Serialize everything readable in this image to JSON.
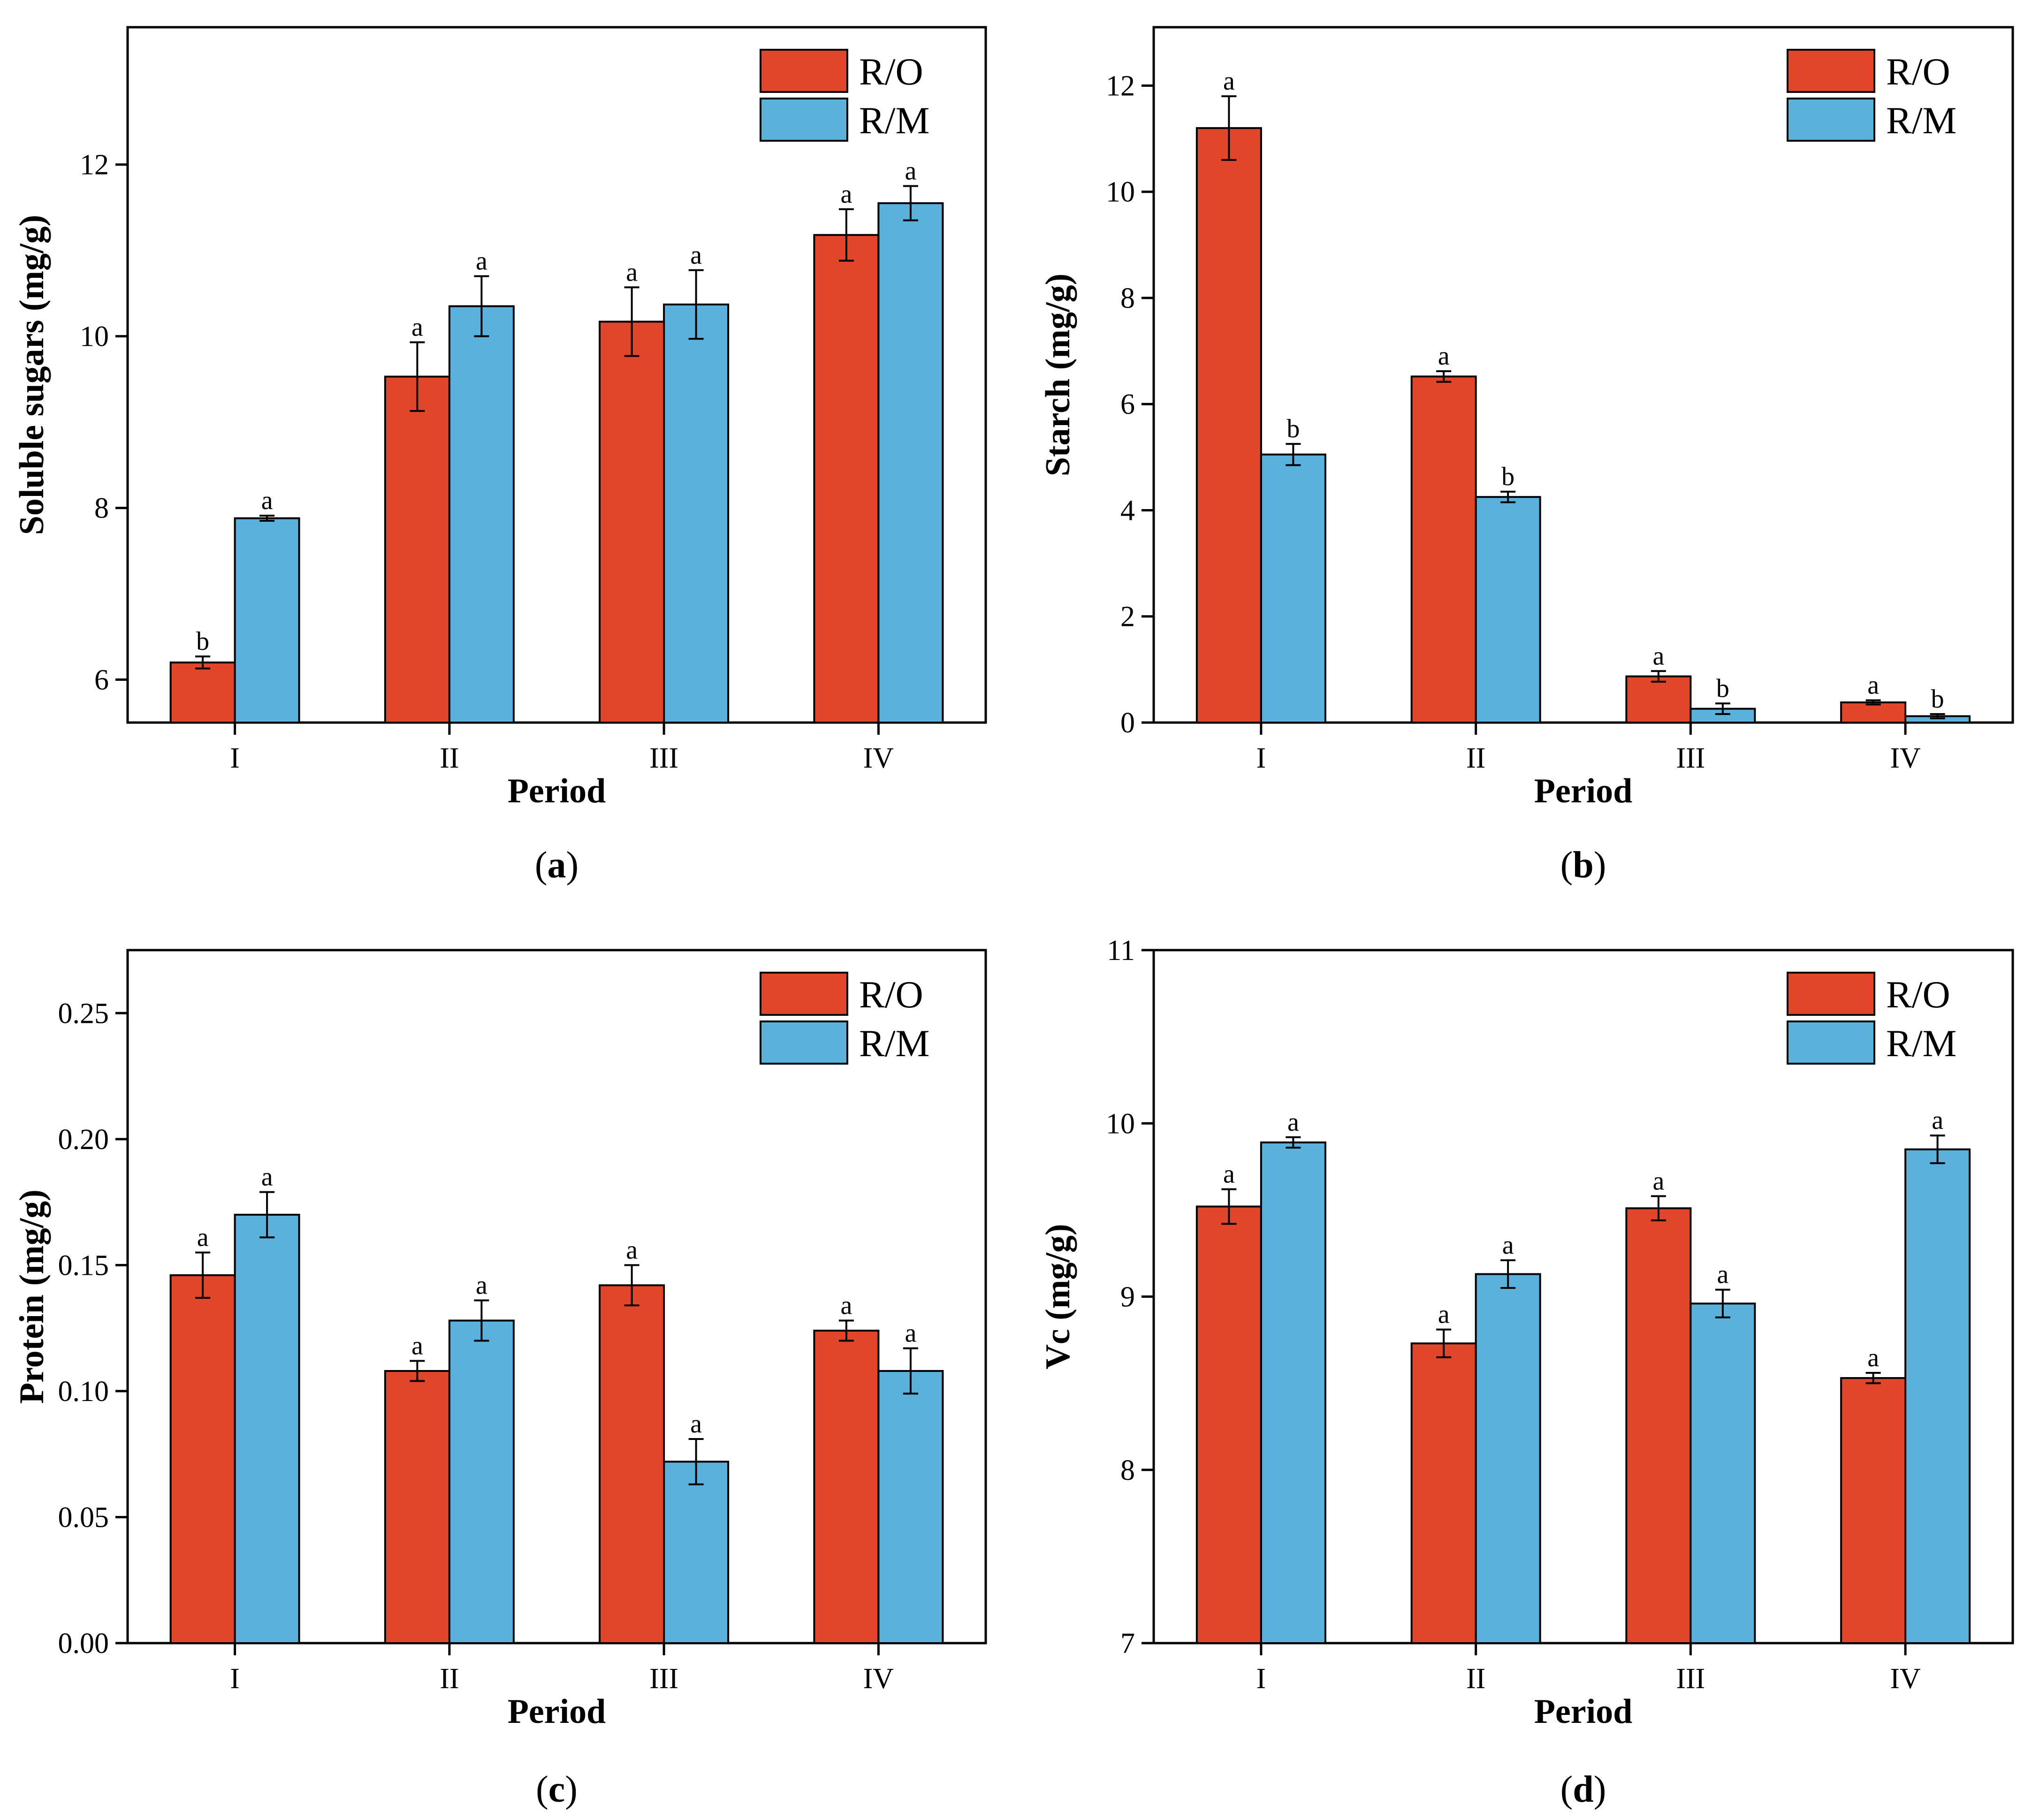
{
  "colors": {
    "ro": "#e2462a",
    "rm": "#5ab1db",
    "axis": "#000000"
  },
  "chart_data": [
    {
      "type": "bar",
      "panel": "a",
      "title": "",
      "xlabel": "Period",
      "ylabel": "Soluble sugars (mg/g)",
      "categories": [
        "I",
        "II",
        "III",
        "IV"
      ],
      "ylim": [
        5.5,
        13.6
      ],
      "yticks": [
        6,
        8,
        10,
        12
      ],
      "ytick_labels": [
        "6",
        "8",
        "10",
        "12"
      ],
      "legend": "top-right",
      "series": [
        {
          "name": "R/O",
          "values": [
            6.2,
            9.53,
            10.17,
            11.18
          ],
          "errors": [
            0.07,
            0.4,
            0.4,
            0.3
          ],
          "letters": [
            "b",
            "a",
            "a",
            "a"
          ]
        },
        {
          "name": "R/M",
          "values": [
            7.88,
            10.35,
            10.37,
            11.55
          ],
          "errors": [
            0.03,
            0.35,
            0.4,
            0.2
          ],
          "letters": [
            "a",
            "a",
            "a",
            "a"
          ]
        }
      ]
    },
    {
      "type": "bar",
      "panel": "b",
      "title": "",
      "xlabel": "Period",
      "ylabel": "Starch (mg/g)",
      "categories": [
        "I",
        "II",
        "III",
        "IV"
      ],
      "ylim": [
        0,
        13.1
      ],
      "yticks": [
        0,
        2,
        4,
        6,
        8,
        10,
        12
      ],
      "ytick_labels": [
        "0",
        "2",
        "4",
        "6",
        "8",
        "10",
        "12"
      ],
      "legend": "top-right",
      "series": [
        {
          "name": "R/O",
          "values": [
            11.2,
            6.52,
            0.87,
            0.38
          ],
          "errors": [
            0.6,
            0.1,
            0.1,
            0.04
          ],
          "letters": [
            "a",
            "a",
            "a",
            "a"
          ]
        },
        {
          "name": "R/M",
          "values": [
            5.05,
            4.25,
            0.26,
            0.12
          ],
          "errors": [
            0.2,
            0.1,
            0.1,
            0.04
          ],
          "letters": [
            "b",
            "b",
            "b",
            "b"
          ]
        }
      ]
    },
    {
      "type": "bar",
      "panel": "c",
      "title": "",
      "xlabel": "Period",
      "ylabel": "Protein (mg/g)",
      "categories": [
        "I",
        "II",
        "III",
        "IV"
      ],
      "ylim": [
        0,
        0.275
      ],
      "yticks": [
        0,
        0.05,
        0.1,
        0.15,
        0.2,
        0.25
      ],
      "ytick_labels": [
        "0.00",
        "0.05",
        "0.10",
        "0.15",
        "0.20",
        "0.25"
      ],
      "legend": "top-right",
      "series": [
        {
          "name": "R/O",
          "values": [
            0.146,
            0.108,
            0.142,
            0.124
          ],
          "errors": [
            0.009,
            0.004,
            0.008,
            0.004
          ],
          "letters": [
            "a",
            "a",
            "a",
            "a"
          ]
        },
        {
          "name": "R/M",
          "values": [
            0.17,
            0.128,
            0.072,
            0.108
          ],
          "errors": [
            0.009,
            0.008,
            0.009,
            0.009
          ],
          "letters": [
            "a",
            "a",
            "a",
            "a"
          ]
        }
      ]
    },
    {
      "type": "bar",
      "panel": "d",
      "title": "",
      "xlabel": "Period",
      "ylabel": "Vc (mg/g)",
      "categories": [
        "I",
        "II",
        "III",
        "IV"
      ],
      "ylim": [
        7,
        11
      ],
      "yticks": [
        7,
        8,
        9,
        10,
        11
      ],
      "ytick_labels": [
        "7",
        "8",
        "9",
        "10",
        "11"
      ],
      "legend": "top-right",
      "series": [
        {
          "name": "R/O",
          "values": [
            9.52,
            8.73,
            9.51,
            8.53
          ],
          "errors": [
            0.1,
            0.08,
            0.07,
            0.03
          ],
          "letters": [
            "a",
            "a",
            "a",
            "a"
          ]
        },
        {
          "name": "R/M",
          "values": [
            9.89,
            9.13,
            8.96,
            9.85
          ],
          "errors": [
            0.03,
            0.08,
            0.08,
            0.08
          ],
          "letters": [
            "a",
            "a",
            "a",
            "a"
          ]
        }
      ]
    }
  ]
}
